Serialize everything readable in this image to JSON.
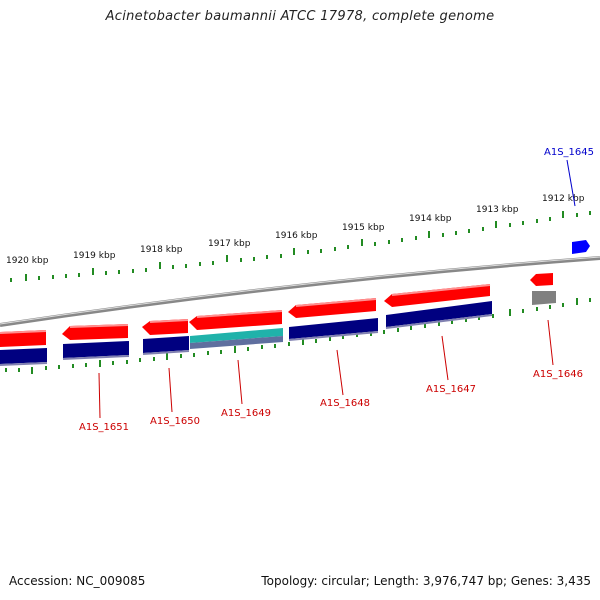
{
  "title": "Acinetobacter baumannii ATCC 17978, complete genome",
  "footer": {
    "accession": "Accession: NC_009085",
    "summary": "Topology: circular; Length: 3,976,747 bp; Genes: 3,435"
  },
  "colors": {
    "forward_cds": "#ff0000",
    "protein_track": "#000080",
    "rna_track": "#20b2aa",
    "pseudo": "#808080",
    "other_feature": "#0000ff",
    "tick": "#228b22",
    "label_gene": "#cc0000",
    "label_other": "#0000cc"
  },
  "tick_labels": [
    "1920 kbp",
    "1919 kbp",
    "1918 kbp",
    "1917 kbp",
    "1916 kbp",
    "1915 kbp",
    "1914 kbp",
    "1913 kbp",
    "1912 kbp"
  ],
  "gene_labels": [
    {
      "text": "A1S_1651",
      "color": "red"
    },
    {
      "text": "A1S_1650",
      "color": "red"
    },
    {
      "text": "A1S_1649",
      "color": "red"
    },
    {
      "text": "A1S_1648",
      "color": "red"
    },
    {
      "text": "A1S_1647",
      "color": "red"
    },
    {
      "text": "A1S_1646",
      "color": "red"
    },
    {
      "text": "A1S_1645",
      "color": "blue"
    }
  ]
}
